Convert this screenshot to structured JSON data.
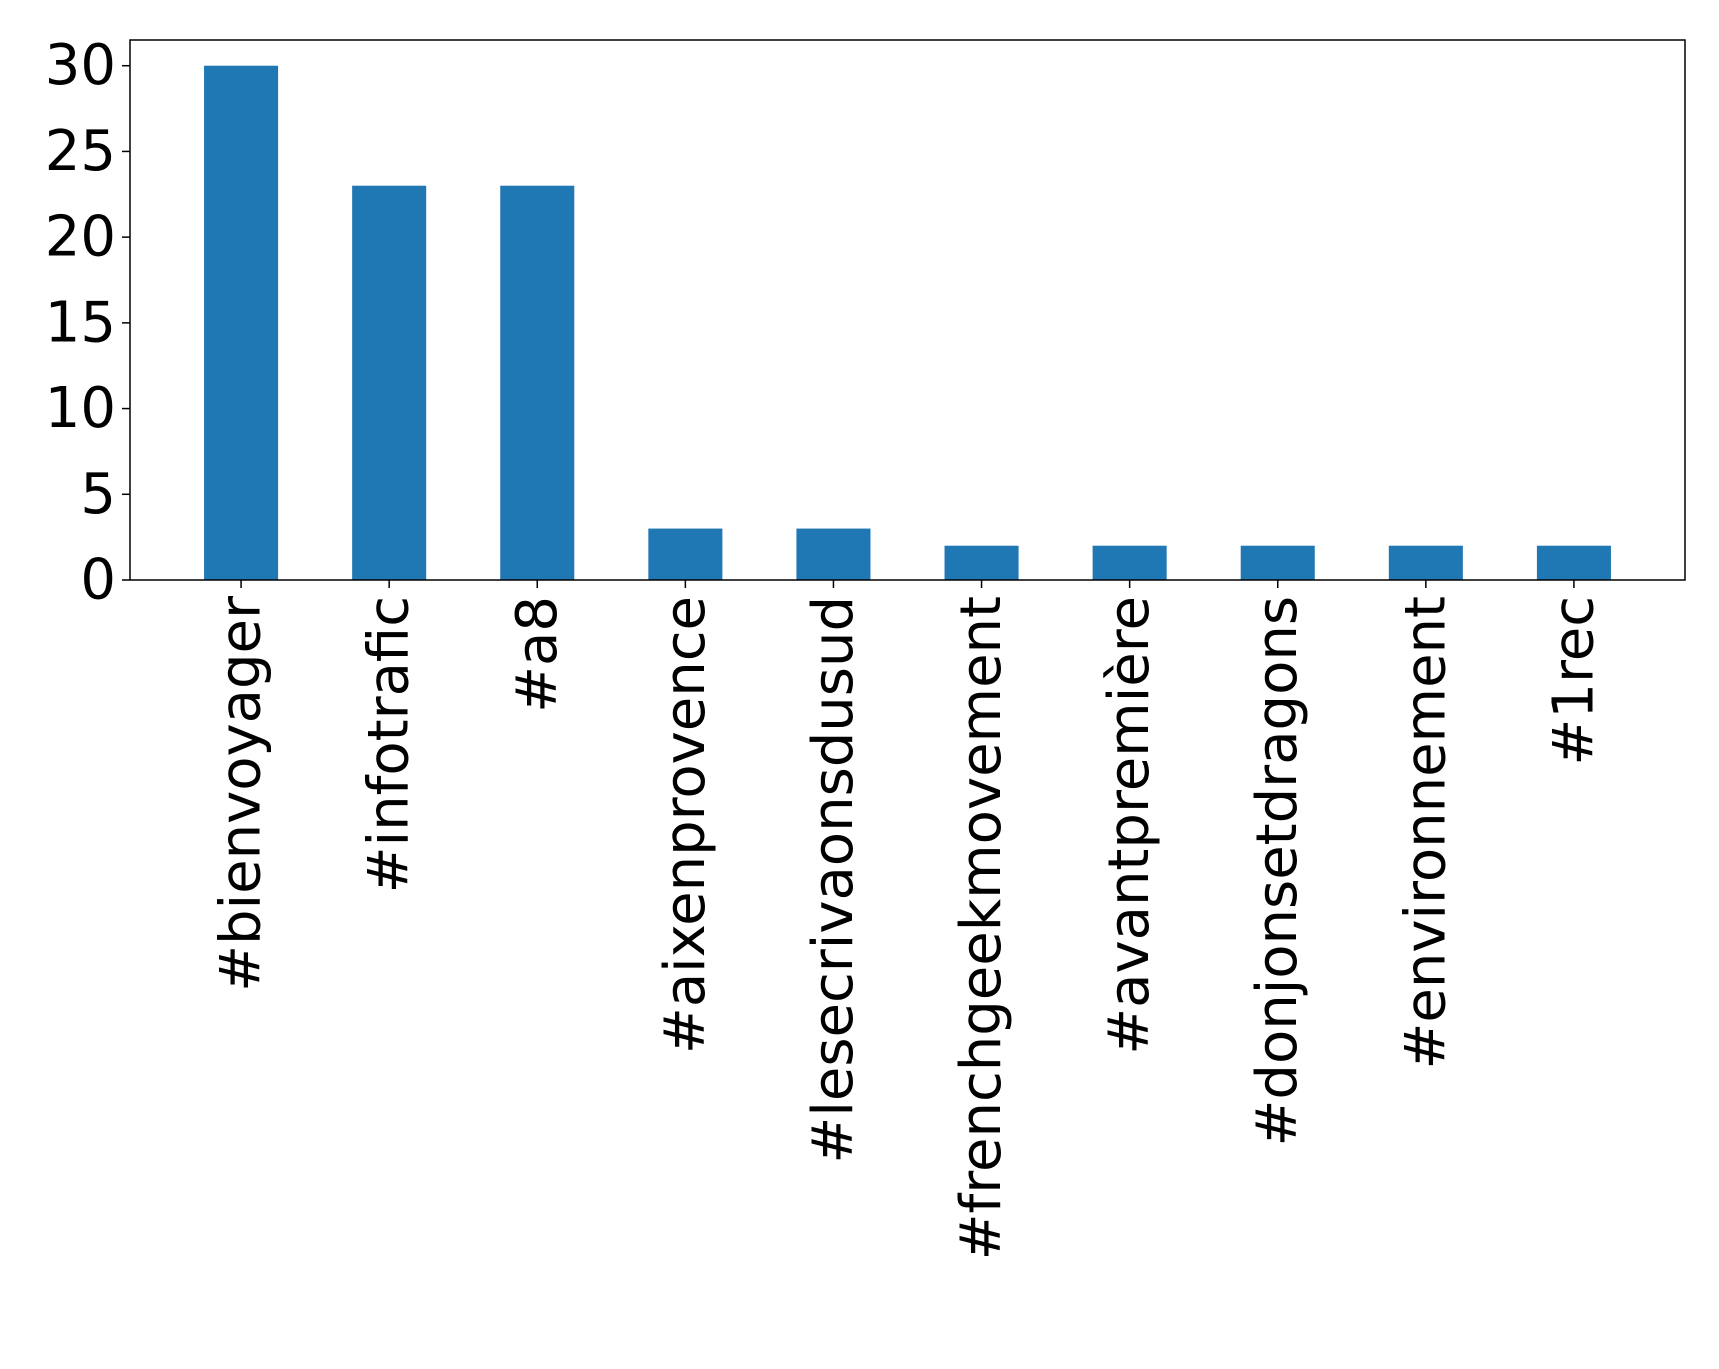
{
  "chart_data": {
    "type": "bar",
    "title": "",
    "xlabel": "",
    "ylabel": "",
    "categories": [
      "#bienvoyager",
      "#infotrafic",
      "#a8",
      "#aixenprovence",
      "#lesecrivaonsdusud",
      "#frenchgeekmovement",
      "#avantpremière",
      "#donjonsetdragons",
      "#environnement",
      "#1rec"
    ],
    "values": [
      30,
      23,
      23,
      3,
      3,
      2,
      2,
      2,
      2,
      2
    ],
    "ylim": [
      0,
      31.5
    ],
    "yticks": [
      0,
      5,
      10,
      15,
      20,
      25,
      30
    ],
    "ytick_labels": [
      "0",
      "5",
      "10",
      "15",
      "20",
      "25",
      "30"
    ],
    "grid": false,
    "legend": "none",
    "colors": {
      "bar": "#1f77b4",
      "axis": "#000000",
      "background": "#ffffff"
    }
  }
}
